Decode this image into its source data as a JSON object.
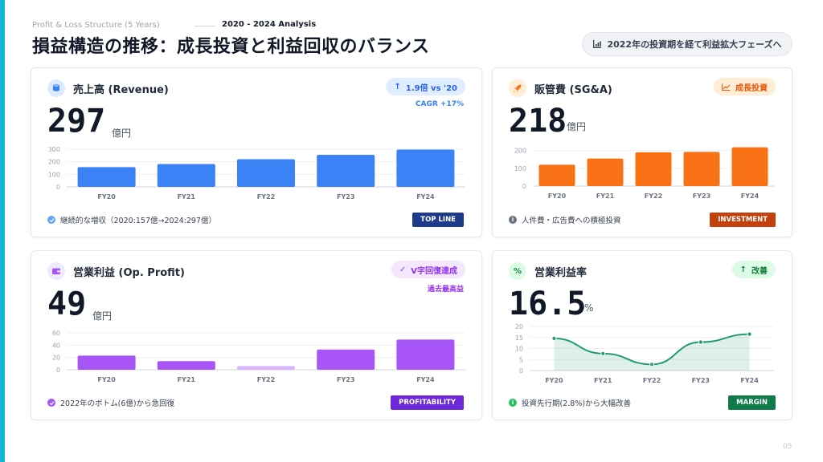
{
  "header": {
    "subtitle": "Profit & Loss Structure (5 Years)",
    "analysis": "2020 - 2024 Analysis",
    "title": "損益構造の推移：成長投資と利益回収のバランス",
    "pill": "2022年の投資期を経て利益拡大フェーズへ"
  },
  "page_number": "05",
  "colors": {
    "revenue": "#3b82f6",
    "sga": "#f97316",
    "profit": "#a855f7",
    "profit_light": "#d8b4fe",
    "margin": "#1f9d6a",
    "tag_blue": "#1e3a8a",
    "tag_orange": "#c2410c",
    "tag_purple": "#6d28d9",
    "tag_green": "#0f7a4a"
  },
  "cards": {
    "revenue": {
      "label": "売上高 (Revenue)",
      "value": "297",
      "unit": "億円",
      "badge": "1.9倍 vs '20",
      "badge_sub": "CAGR +17%",
      "footnote": "継続的な増収（2020:157億→2024:297億）",
      "tag": "TOP LINE",
      "icon": "coins-icon"
    },
    "sga": {
      "label": "販管費 (SG&A)",
      "value": "218",
      "unit": "億円",
      "badge": "成長投資",
      "footnote": "人件費・広告費への積極投資",
      "tag": "INVESTMENT",
      "icon": "rocket-icon"
    },
    "profit": {
      "label": "営業利益 (Op. Profit)",
      "value": "49",
      "unit": "億円",
      "badge": "V字回復達成",
      "badge_sub": "過去最高益",
      "footnote": "2022年のボトム(6億)から急回復",
      "tag": "PROFITABILITY",
      "icon": "wallet-icon"
    },
    "margin": {
      "label": "営業利益率",
      "value": "16.5",
      "unit": "%",
      "badge": "改善",
      "footnote": "投資先行期(2.8%)から大幅改善",
      "tag": "MARGIN",
      "icon": "percent-icon"
    }
  },
  "chart_data": [
    {
      "type": "bar",
      "categories": [
        "FY20",
        "FY21",
        "FY22",
        "FY23",
        "FY24"
      ],
      "values": [
        157,
        182,
        220,
        255,
        297
      ],
      "ylim": [
        0,
        300
      ],
      "yticks": [
        "0",
        "100",
        "200",
        "300"
      ],
      "grid": true
    },
    {
      "type": "bar",
      "categories": [
        "FY20",
        "FY21",
        "FY22",
        "FY23",
        "FY24"
      ],
      "values": [
        120,
        155,
        190,
        192,
        218
      ],
      "ylim": [
        0,
        230
      ],
      "yticks": [
        "0",
        "100",
        "200"
      ],
      "grid": true
    },
    {
      "type": "bar",
      "categories": [
        "FY20",
        "FY21",
        "FY22",
        "FY23",
        "FY24"
      ],
      "values": [
        23,
        14,
        6,
        33,
        49
      ],
      "ylim": [
        0,
        60
      ],
      "yticks": [
        "0",
        "20",
        "40",
        "60"
      ],
      "grid": true
    },
    {
      "type": "area",
      "categories": [
        "FY20",
        "FY21",
        "FY22",
        "FY23",
        "FY24"
      ],
      "values": [
        14.6,
        7.7,
        2.8,
        12.9,
        16.5
      ],
      "ylim": [
        0,
        20
      ],
      "yticks": [
        "0",
        "5",
        "10",
        "15",
        "20"
      ],
      "grid": true
    }
  ]
}
